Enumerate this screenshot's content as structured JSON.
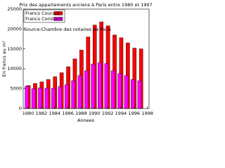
{
  "chart_data": {
    "type": "bar",
    "title": "Prix des appartements anciens à Paris entre 1980 et 1997",
    "x_label": "Annees",
    "y_label": "En francs au m²",
    "annotation": "Source:Chambre des notaires de Paris",
    "x": [
      1980,
      1981,
      1982,
      1983,
      1984,
      1985,
      1986,
      1987,
      1988,
      1989,
      1990,
      1991,
      1992,
      1993,
      1994,
      1995,
      1996,
      1997
    ],
    "series": [
      {
        "name": "Francs Courant",
        "color": "#ff0000",
        "values": [
          5800,
          6300,
          6700,
          7300,
          8000,
          9000,
          10500,
          12500,
          14700,
          18000,
          21000,
          21800,
          20800,
          18500,
          17800,
          16500,
          15200,
          15000
        ]
      },
      {
        "name": "Francs Constant",
        "color": "#ff00ff",
        "values": [
          5600,
          5000,
          5200,
          5100,
          5100,
          5500,
          6000,
          7000,
          8300,
          9500,
          11200,
          11500,
          11300,
          9500,
          8800,
          8300,
          7300,
          7000
        ]
      }
    ],
    "xlim": [
      1979.25,
      1998.25
    ],
    "xticks": [
      1980,
      1982,
      1984,
      1986,
      1988,
      1990,
      1992,
      1994,
      1996,
      1998
    ],
    "ylim": [
      0,
      25000
    ],
    "yticks": [
      0,
      5000,
      10000,
      15000,
      20000,
      25000
    ],
    "legend": "upper-left"
  }
}
